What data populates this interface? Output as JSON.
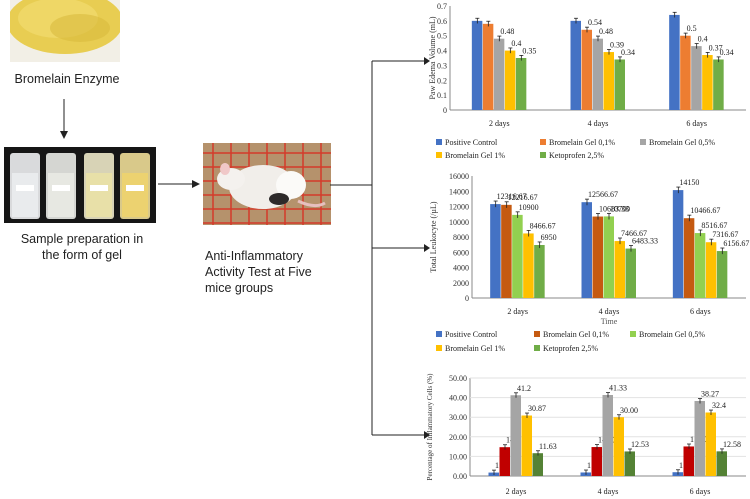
{
  "figure": {
    "step1_label": "Bromelain Enzyme",
    "step2_label_line1": "Sample preparation in",
    "step2_label_line2": "the form of gel",
    "step3_label_line1": "Anti-Inflammatory",
    "step3_label_line2": "Activity Test at Five",
    "step3_label_line3": "mice groups"
  },
  "chart_data": [
    {
      "type": "bar",
      "ylabel": "Paw Edema Volume (mL)",
      "categories": [
        "2 days",
        "4 days",
        "6 days"
      ],
      "ylim": [
        0,
        0.7
      ],
      "yticks": [
        "0",
        "0.1",
        "0.2",
        "0.3",
        "0.4",
        "0.5",
        "0.6",
        "0.7"
      ],
      "series": [
        {
          "name": "Positive Control",
          "color": "#4472c4",
          "values": [
            0.6,
            0.6,
            0.64
          ],
          "labels": [
            "",
            "",
            ""
          ]
        },
        {
          "name": "Bromelain Gel 0,1%",
          "color": "#ed7d31",
          "values": [
            0.58,
            0.54,
            0.5
          ],
          "labels": [
            "",
            "0.54",
            "0.5"
          ]
        },
        {
          "name": "Bromelain Gel 0,5%",
          "color": "#a5a5a5",
          "values": [
            0.48,
            0.48,
            0.43
          ],
          "labels": [
            "0.48",
            "0.48",
            "0.4"
          ]
        },
        {
          "name": "Bromelain Gel 1%",
          "color": "#ffc000",
          "values": [
            0.4,
            0.39,
            0.37
          ],
          "labels": [
            "0.4",
            "0.39",
            "0.37"
          ]
        },
        {
          "name": "Ketoprofen 2,5%",
          "color": "#70ad47",
          "values": [
            0.35,
            0.34,
            0.34
          ],
          "labels": [
            "0.35",
            "0.34",
            "0.34"
          ]
        }
      ]
    },
    {
      "type": "bar",
      "ylabel": "Total Leukocyte (/µL)",
      "xlabel": "Time",
      "categories": [
        "2 days",
        "4 days",
        "6 days"
      ],
      "ylim": [
        0,
        16000
      ],
      "yticks": [
        "0",
        "2000",
        "4000",
        "6000",
        "8000",
        "10000",
        "12000",
        "14000",
        "16000"
      ],
      "series": [
        {
          "name": "Positive Control",
          "color": "#4472c4",
          "values": [
            12316.67,
            12566.67,
            14150
          ],
          "labels": [
            "12316.67",
            "12566.67",
            "14150"
          ]
        },
        {
          "name": "Bromelain Gel 0,1%",
          "color": "#c55a11",
          "values": [
            12216.67,
            10683.33,
            10466.67
          ],
          "labels": [
            "12216.67",
            "10683.33",
            "10466.67"
          ]
        },
        {
          "name": "Bromelain Gel 0,5%",
          "color": "#92d050",
          "values": [
            10900,
            10700,
            8516.67
          ],
          "labels": [
            "10900",
            "10700",
            "8516.67"
          ]
        },
        {
          "name": "Bromelain Gel 1%",
          "color": "#ffc000",
          "values": [
            8466.67,
            7466.67,
            7316.67
          ],
          "labels": [
            "8466.67",
            "7466.67",
            "7316.67"
          ]
        },
        {
          "name": "Ketoprofen 2,5%",
          "color": "#70ad47",
          "values": [
            6950,
            6483.33,
            6156.67
          ],
          "labels": [
            "6950",
            "6483.33",
            "6156.67"
          ]
        }
      ]
    },
    {
      "type": "bar",
      "ylabel": "Percentage of Inflammatory Cells (%)",
      "categories": [
        "2 days",
        "4 days",
        "6 days"
      ],
      "ylim": [
        0,
        50
      ],
      "yticks": [
        "0.00",
        "10.00",
        "20.00",
        "30.00",
        "40.00",
        "50.00"
      ],
      "series": [
        {
          "name": "Positive Control",
          "color": "#4472c4",
          "values": [
            1.75,
            1.8,
            1.93
          ],
          "labels": [
            "1.75",
            "1.80",
            "1.93"
          ]
        },
        {
          "name": "Bromelain Gel 0,1%",
          "color": "#c00000",
          "values": [
            14.7,
            14.77,
            15.07
          ],
          "labels": [
            "14.7",
            "14.77",
            "15.07"
          ]
        },
        {
          "name": "Bromelain Gel 0,5%",
          "color": "#a5a5a5",
          "values": [
            41.2,
            41.33,
            38.27
          ],
          "labels": [
            "41.2",
            "41.33",
            "38.27"
          ]
        },
        {
          "name": "Bromelain Gel 1%",
          "color": "#ffc000",
          "values": [
            30.87,
            30.0,
            32.4
          ],
          "labels": [
            "30.87",
            "30.00",
            "32.4"
          ]
        },
        {
          "name": "Ketoprofen 2,5%",
          "color": "#548235",
          "values": [
            11.63,
            12.53,
            12.58
          ],
          "labels": [
            "11.63",
            "12.53",
            "12.58"
          ]
        }
      ]
    }
  ]
}
